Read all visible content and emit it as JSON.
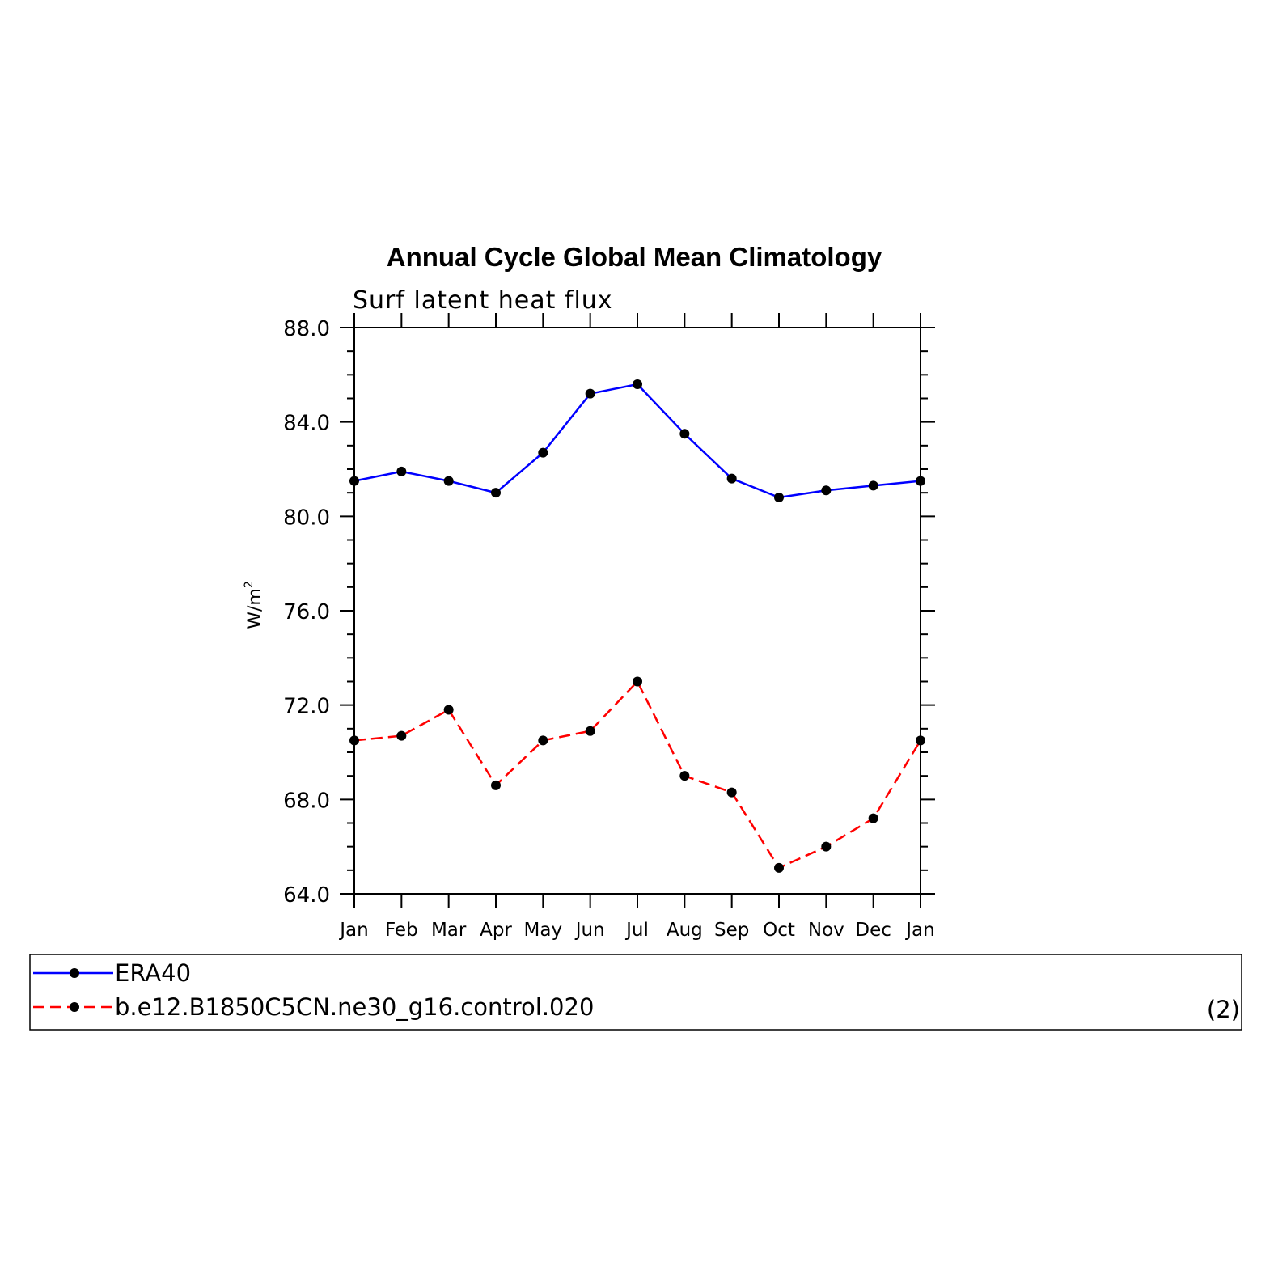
{
  "chart_data": {
    "type": "line",
    "title": "Annual Cycle Global Mean Climatology",
    "subtitle": "Surf latent heat flux",
    "ylabel_base": "W/m",
    "ylabel_sup": "2",
    "xlabel": "",
    "categories": [
      "Jan",
      "Feb",
      "Mar",
      "Apr",
      "May",
      "Jun",
      "Jul",
      "Aug",
      "Sep",
      "Oct",
      "Nov",
      "Dec",
      "Jan"
    ],
    "ylim": [
      64.0,
      88.0
    ],
    "yticks": [
      "64.0",
      "68.0",
      "72.0",
      "76.0",
      "80.0",
      "84.0",
      "88.0"
    ],
    "ytick_values": [
      64,
      68,
      72,
      76,
      80,
      84,
      88
    ],
    "grid": false,
    "legend_position": "bottom",
    "legend_note": "(2)",
    "series": [
      {
        "name": "ERA40",
        "color": "#0000ff",
        "dash": "solid",
        "values": [
          81.5,
          81.9,
          81.5,
          81.0,
          82.7,
          85.2,
          85.6,
          83.5,
          81.6,
          80.8,
          81.1,
          81.3,
          81.5
        ]
      },
      {
        "name": "b.e12.B1850C5CN.ne30_g16.control.020",
        "color": "#ff0000",
        "dash": "dashed",
        "values": [
          70.5,
          70.7,
          71.8,
          68.6,
          70.5,
          70.9,
          73.0,
          69.0,
          68.3,
          65.1,
          66.0,
          67.2,
          70.5
        ]
      }
    ]
  }
}
